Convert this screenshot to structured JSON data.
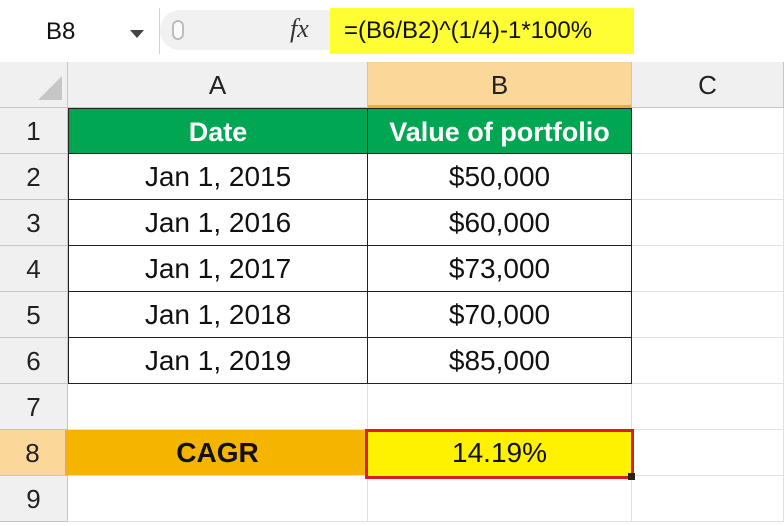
{
  "name_box": {
    "ref": "B8"
  },
  "formula_bar": {
    "fx_label": "fx",
    "formula": "=(B6/B2)^(1/4)-1*100%"
  },
  "columns": [
    "A",
    "B",
    "C"
  ],
  "rows": [
    "1",
    "2",
    "3",
    "4",
    "5",
    "6",
    "7",
    "8",
    "9"
  ],
  "table": {
    "header": [
      "Date",
      "Value of portfolio"
    ],
    "rows": [
      [
        "Jan 1, 2015",
        "$50,000"
      ],
      [
        "Jan 1, 2016",
        "$60,000"
      ],
      [
        "Jan 1, 2017",
        "$73,000"
      ],
      [
        "Jan 1, 2018",
        "$70,000"
      ],
      [
        "Jan 1, 2019",
        "$85,000"
      ]
    ]
  },
  "cagr": {
    "label": "CAGR",
    "value": "14.19%"
  },
  "colors": {
    "header_green": "#00a651",
    "cagr_label_bg": "#f4b400",
    "cagr_value_bg": "#fff200",
    "formula_highlight": "#fffd33",
    "selection_border": "#e01b1b"
  }
}
